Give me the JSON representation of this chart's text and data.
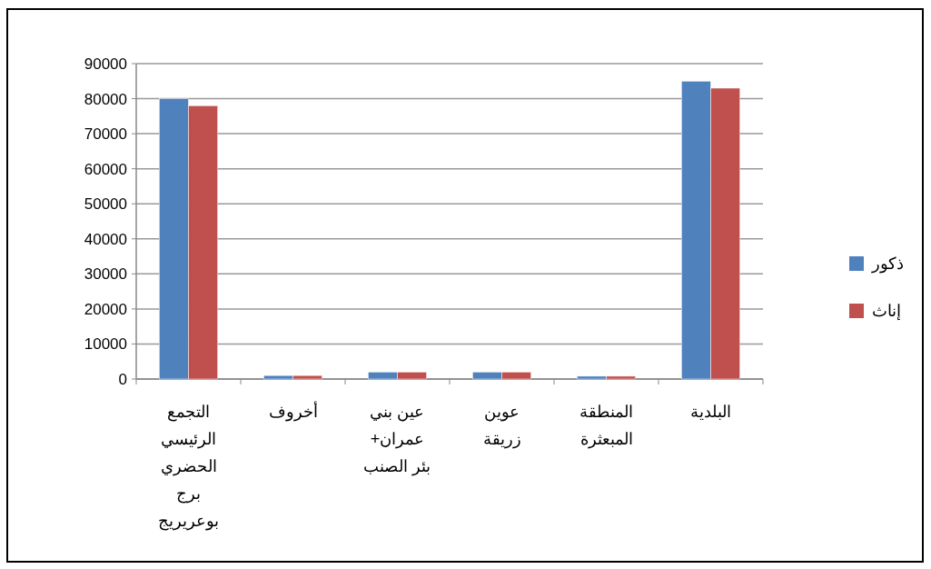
{
  "chart_data": {
    "type": "bar",
    "categories": [
      "التجمع الرئيسي الحضري برج بوعريريج",
      "أخروف",
      "عين بني عمران+ بئر الصنب",
      "عوين زريقة",
      "المنطقة المبعثرة",
      "البلدية"
    ],
    "series": [
      {
        "name": "ذكور",
        "color": "#4f81bd",
        "values": [
          80000,
          1000,
          2000,
          2000,
          800,
          85000
        ]
      },
      {
        "name": "إناث",
        "color": "#c0504d",
        "values": [
          78000,
          1000,
          2000,
          2000,
          800,
          83000
        ]
      }
    ],
    "ylim": [
      0,
      90000
    ],
    "yticks": [
      0,
      10000,
      20000,
      30000,
      40000,
      50000,
      60000,
      70000,
      80000,
      90000
    ],
    "grid": "y",
    "legend": "right"
  }
}
